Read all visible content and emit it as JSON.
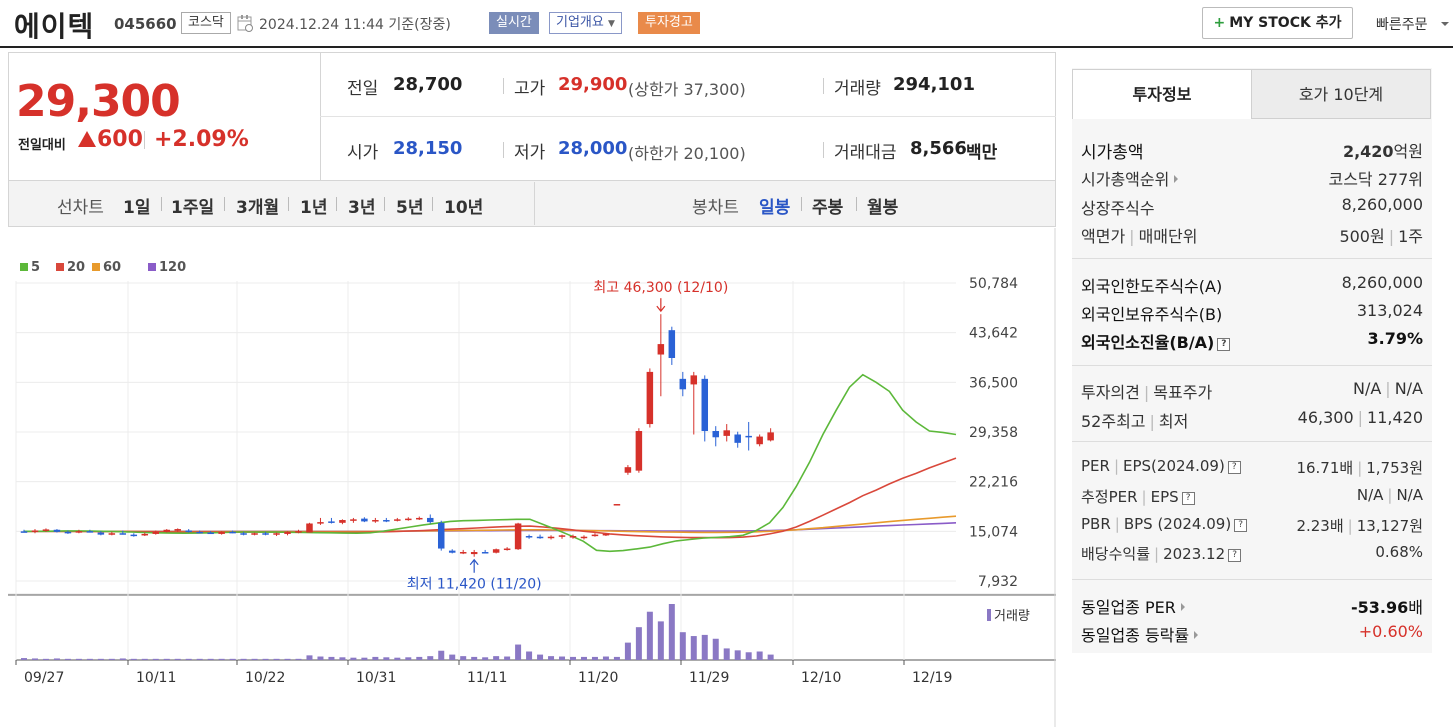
{
  "header": {
    "company_name": "에이텍",
    "code": "045660",
    "market": "코스닥",
    "timestamp": "2024.12.24 11:44  기준(장중)",
    "realtime_label": "실시간",
    "overview_label": "기업개요",
    "warning_label": "투자경고",
    "mystock_label": "MY STOCK 추가",
    "quick_order_label": "빠른주문"
  },
  "price": {
    "current": "29,300",
    "change_label": "전일대비",
    "change_amount": "600",
    "change_pct": "+2.09%",
    "prev_label": "전일",
    "prev": "28,700",
    "high_label": "고가",
    "high": "29,900",
    "upper_limit": "(상한가 37,300)",
    "volume_label": "거래량",
    "volume": "294,101",
    "open_label": "시가",
    "open": "28,150",
    "low_label": "저가",
    "low": "28,000",
    "lower_limit": "(하한가 20,100)",
    "amount_label": "거래대금",
    "amount": "8,566",
    "amount_unit": "백만"
  },
  "period_bar": {
    "line_chart_label": "선차트",
    "line_periods": [
      "1일",
      "1주일",
      "3개월",
      "1년",
      "3년",
      "5년",
      "10년"
    ],
    "candle_label": "봉차트",
    "candle_periods": [
      "일봉",
      "주봉",
      "월봉"
    ],
    "active_candle": "일봉"
  },
  "chart_data": {
    "type": "candlestick",
    "legend": [
      "5",
      "20",
      "60",
      "120"
    ],
    "ma_colors": {
      "5": "#5cb83a",
      "20": "#d9483b",
      "60": "#e89a2c",
      "120": "#8a5cc8"
    },
    "up_color": "#d6312a",
    "down_color": "#2a62d6",
    "volume_color": "#8a78c4",
    "y_ticks": [
      "50,784",
      "43,642",
      "36,500",
      "29,358",
      "22,216",
      "15,074",
      "7,932"
    ],
    "y_tick_values": [
      50784,
      43642,
      36500,
      29358,
      22216,
      15074,
      7932
    ],
    "x_ticks": [
      "09/27",
      "10/11",
      "10/22",
      "10/31",
      "11/11",
      "11/20",
      "11/29",
      "12/10",
      "12/19"
    ],
    "max_annotation": "최고 46,300 (12/10)",
    "min_annotation": "최저 11,420 (11/20)",
    "volume_label": "거래량",
    "candles": [
      {
        "o": 15074,
        "h": 15300,
        "l": 14900,
        "c": 15000
      },
      {
        "o": 15000,
        "h": 15400,
        "l": 14800,
        "c": 15200
      },
      {
        "o": 15200,
        "h": 15500,
        "l": 15000,
        "c": 15350
      },
      {
        "o": 15300,
        "h": 15400,
        "l": 14900,
        "c": 15000
      },
      {
        "o": 15000,
        "h": 15200,
        "l": 14700,
        "c": 14900
      },
      {
        "o": 15000,
        "h": 15300,
        "l": 14800,
        "c": 15100
      },
      {
        "o": 15100,
        "h": 15300,
        "l": 14900,
        "c": 15000
      },
      {
        "o": 14900,
        "h": 15100,
        "l": 14500,
        "c": 14600
      },
      {
        "o": 14700,
        "h": 15000,
        "l": 14500,
        "c": 14800
      },
      {
        "o": 14800,
        "h": 15200,
        "l": 14600,
        "c": 14700
      },
      {
        "o": 14600,
        "h": 14800,
        "l": 14300,
        "c": 14500
      },
      {
        "o": 14600,
        "h": 14900,
        "l": 14400,
        "c": 14700
      },
      {
        "o": 14700,
        "h": 15200,
        "l": 14600,
        "c": 15000
      },
      {
        "o": 15000,
        "h": 15400,
        "l": 14900,
        "c": 15300
      },
      {
        "o": 15300,
        "h": 15500,
        "l": 15000,
        "c": 15400
      },
      {
        "o": 15200,
        "h": 15400,
        "l": 14900,
        "c": 15000
      },
      {
        "o": 15000,
        "h": 15200,
        "l": 14800,
        "c": 14900
      },
      {
        "o": 14900,
        "h": 15100,
        "l": 14700,
        "c": 14800
      },
      {
        "o": 14700,
        "h": 15100,
        "l": 14600,
        "c": 15000
      },
      {
        "o": 15000,
        "h": 15200,
        "l": 14800,
        "c": 14900
      },
      {
        "o": 14800,
        "h": 15000,
        "l": 14500,
        "c": 14700
      },
      {
        "o": 14700,
        "h": 14900,
        "l": 14500,
        "c": 14800
      },
      {
        "o": 14800,
        "h": 15000,
        "l": 14500,
        "c": 14600
      },
      {
        "o": 14600,
        "h": 14900,
        "l": 14400,
        "c": 14800
      },
      {
        "o": 14700,
        "h": 15100,
        "l": 14500,
        "c": 15000
      },
      {
        "o": 15000,
        "h": 15300,
        "l": 14800,
        "c": 15100
      },
      {
        "o": 14900,
        "h": 16300,
        "l": 14900,
        "c": 16200
      },
      {
        "o": 16300,
        "h": 17000,
        "l": 16000,
        "c": 16400
      },
      {
        "o": 16500,
        "h": 17000,
        "l": 16200,
        "c": 16300
      },
      {
        "o": 16300,
        "h": 16800,
        "l": 16100,
        "c": 16700
      },
      {
        "o": 16600,
        "h": 17000,
        "l": 16300,
        "c": 16800
      },
      {
        "o": 16900,
        "h": 17100,
        "l": 16400,
        "c": 16500
      },
      {
        "o": 16500,
        "h": 17000,
        "l": 16300,
        "c": 16700
      },
      {
        "o": 16700,
        "h": 17000,
        "l": 16400,
        "c": 16600
      },
      {
        "o": 16700,
        "h": 17000,
        "l": 16500,
        "c": 16800
      },
      {
        "o": 16800,
        "h": 17100,
        "l": 16600,
        "c": 16900
      },
      {
        "o": 16900,
        "h": 17200,
        "l": 16700,
        "c": 17000
      },
      {
        "o": 17000,
        "h": 17500,
        "l": 16200,
        "c": 16400
      },
      {
        "o": 16300,
        "h": 16600,
        "l": 12300,
        "c": 12600
      },
      {
        "o": 12300,
        "h": 12500,
        "l": 11900,
        "c": 12000
      },
      {
        "o": 12000,
        "h": 12400,
        "l": 11800,
        "c": 12100
      },
      {
        "o": 11800,
        "h": 12400,
        "l": 11420,
        "c": 12100
      },
      {
        "o": 12100,
        "h": 12400,
        "l": 11900,
        "c": 12000
      },
      {
        "o": 12000,
        "h": 12600,
        "l": 11900,
        "c": 12500
      },
      {
        "o": 12500,
        "h": 12800,
        "l": 12300,
        "c": 12600
      },
      {
        "o": 12500,
        "h": 16300,
        "l": 12400,
        "c": 16200
      },
      {
        "o": 14400,
        "h": 14600,
        "l": 14000,
        "c": 14200
      },
      {
        "o": 14300,
        "h": 14600,
        "l": 14000,
        "c": 14100
      },
      {
        "o": 14100,
        "h": 14500,
        "l": 13900,
        "c": 14300
      },
      {
        "o": 14300,
        "h": 14600,
        "l": 14000,
        "c": 14500
      },
      {
        "o": 14200,
        "h": 14600,
        "l": 14000,
        "c": 14400
      },
      {
        "o": 14200,
        "h": 14500,
        "l": 13900,
        "c": 14300
      },
      {
        "o": 14500,
        "h": 14800,
        "l": 14300,
        "c": 14600
      },
      {
        "o": 14600,
        "h": 14800,
        "l": 14400,
        "c": 14700
      },
      {
        "o": 18900,
        "h": 19000,
        "l": 18800,
        "c": 19000
      },
      {
        "o": 23500,
        "h": 24600,
        "l": 23200,
        "c": 24300
      },
      {
        "o": 23800,
        "h": 29900,
        "l": 23500,
        "c": 29500
      },
      {
        "o": 30500,
        "h": 38500,
        "l": 30000,
        "c": 38000
      },
      {
        "o": 40500,
        "h": 46300,
        "l": 34500,
        "c": 42000
      },
      {
        "o": 44000,
        "h": 44500,
        "l": 39000,
        "c": 40000
      },
      {
        "o": 37000,
        "h": 38000,
        "l": 34500,
        "c": 35500
      },
      {
        "o": 36200,
        "h": 38000,
        "l": 29000,
        "c": 37500
      },
      {
        "o": 37000,
        "h": 37500,
        "l": 28000,
        "c": 29500
      },
      {
        "o": 29500,
        "h": 30200,
        "l": 27300,
        "c": 28600
      },
      {
        "o": 28800,
        "h": 30500,
        "l": 28000,
        "c": 29600
      },
      {
        "o": 29000,
        "h": 29400,
        "l": 27100,
        "c": 27800
      },
      {
        "o": 28800,
        "h": 30800,
        "l": 26700,
        "c": 28600
      },
      {
        "o": 27600,
        "h": 29000,
        "l": 27300,
        "c": 28700
      },
      {
        "o": 28150,
        "h": 29900,
        "l": 28000,
        "c": 29300
      }
    ],
    "volumes": [
      5,
      4,
      3,
      4,
      3,
      3,
      3,
      3,
      3,
      4,
      3,
      3,
      3,
      3,
      3,
      3,
      3,
      3,
      3,
      3,
      3,
      3,
      3,
      3,
      3,
      3,
      12,
      9,
      8,
      7,
      6,
      6,
      8,
      7,
      6,
      7,
      8,
      10,
      24,
      14,
      10,
      8,
      7,
      10,
      9,
      40,
      22,
      14,
      10,
      9,
      8,
      8,
      8,
      9,
      8,
      45,
      85,
      125,
      100,
      145,
      72,
      62,
      65,
      55,
      30,
      25,
      20,
      22,
      14
    ],
    "ma5": [
      15074,
      15074,
      15100,
      15140,
      15130,
      15120,
      15080,
      15040,
      14980,
      14900,
      14860,
      14820,
      14800,
      14820,
      14860,
      14900,
      14960,
      14980,
      14960,
      14960,
      14940,
      14920,
      14880,
      14860,
      14820,
      14800,
      14860,
      15100,
      15400,
      15700,
      16000,
      16250,
      16500,
      16600,
      16650,
      16700,
      16750,
      16800,
      16800,
      16050,
      15300,
      14500,
      13650,
      12350,
      12200,
      12300,
      12550,
      12800,
      13300,
      13700,
      13900,
      14100,
      14200,
      14300,
      14500,
      15200,
      16300,
      18500,
      21500,
      25000,
      29000,
      32500,
      35800,
      37600,
      36500,
      35200,
      32500,
      30800,
      29500,
      29300,
      29000
    ],
    "ma20": [
      15074,
      15074,
      15080,
      15080,
      15080,
      15070,
      15060,
      15050,
      15040,
      15020,
      15000,
      14990,
      14980,
      14970,
      14960,
      14960,
      14960,
      14970,
      14970,
      14970,
      14960,
      14950,
      14950,
      14940,
      14940,
      14940,
      14960,
      15000,
      15050,
      15120,
      15200,
      15300,
      15380,
      15450,
      15550,
      15650,
      15740,
      15800,
      15830,
      15700,
      15520,
      15320,
      15100,
      14900,
      14700,
      14560,
      14440,
      14360,
      14280,
      14220,
      14180,
      14170,
      14160,
      14180,
      14240,
      14400,
      14700,
      15100,
      15700,
      16500,
      17400,
      18300,
      19200,
      20200,
      21000,
      21900,
      22700,
      23400,
      24200,
      24900,
      25600
    ],
    "ma60": [
      15074,
      15074,
      15074,
      15070,
      15068,
      15066,
      15064,
      15062,
      15060,
      15058,
      15056,
      15054,
      15052,
      15050,
      15048,
      15046,
      15044,
      15044,
      15044,
      15044,
      15044,
      15044,
      15044,
      15046,
      15048,
      15050,
      15060,
      15080,
      15100,
      15120,
      15140,
      15160,
      15180,
      15200,
      15220,
      15240,
      15260,
      15280,
      15300,
      15290,
      15260,
      15230,
      15200,
      15160,
      15120,
      15080,
      15040,
      15000,
      14980,
      14960,
      14940,
      14920,
      14920,
      14930,
      14950,
      15000,
      15080,
      15180,
      15300,
      15450,
      15600,
      15780,
      15950,
      16120,
      16300,
      16480,
      16650,
      16800,
      16950,
      17100,
      17250
    ],
    "ma120": [
      15074,
      15074,
      15074,
      15074,
      15074,
      15074,
      15074,
      15074,
      15074,
      15074,
      15074,
      15074,
      15074,
      15074,
      15074,
      15074,
      15074,
      15074,
      15074,
      15074,
      15074,
      15074,
      15074,
      15074,
      15074,
      15074,
      15080,
      15090,
      15100,
      15110,
      15120,
      15130,
      15140,
      15150,
      15160,
      15170,
      15180,
      15190,
      15200,
      15200,
      15195,
      15190,
      15180,
      15170,
      15160,
      15150,
      15140,
      15130,
      15125,
      15120,
      15120,
      15120,
      15120,
      15125,
      15130,
      15150,
      15190,
      15240,
      15300,
      15380,
      15460,
      15550,
      15640,
      15730,
      15820,
      15900,
      15980,
      16060,
      16140,
      16220,
      16300
    ]
  },
  "right_panel": {
    "tab_invest": "투자정보",
    "tab_hoga": "호가 10단계",
    "rows1": [
      {
        "k": "시가총액",
        "v": "2,420",
        "v_unit": "억원"
      },
      {
        "k": "시가총액순위",
        "v": "코스닥 277위"
      },
      {
        "k": "상장주식수",
        "v": "8,260,000"
      },
      {
        "k": "액면가",
        "k2": "매매단위",
        "v": "500원",
        "v2": "1주"
      }
    ],
    "rows2": [
      {
        "k": "외국인한도주식수(A)",
        "v": "8,260,000"
      },
      {
        "k": "외국인보유주식수(B)",
        "v": "313,024"
      },
      {
        "k": "외국인소진율(B/A)",
        "v": "3.79%"
      }
    ],
    "rows3": [
      {
        "k": "투자의견",
        "k2": "목표주가",
        "v": "N/A",
        "v2": "N/A"
      },
      {
        "k": "52주최고",
        "k2": "최저",
        "v": "46,300",
        "v2": "11,420"
      }
    ],
    "rows4": [
      {
        "k": "PER",
        "k2": "EPS(2024.09)",
        "v": "16.71배",
        "v2": "1,753원"
      },
      {
        "k": "추정PER",
        "k2": "EPS",
        "v": "N/A",
        "v2": "N/A"
      },
      {
        "k": "PBR",
        "k2": "BPS (2024.09)",
        "v": "2.23배",
        "v2": "13,127원"
      },
      {
        "k": "배당수익률",
        "k2": "2023.12",
        "v": "0.68%"
      }
    ],
    "rows5": [
      {
        "k": "동일업종 PER",
        "v": "-53.96",
        "v_unit": "배"
      },
      {
        "k": "동일업종 등락률",
        "v": "+0.60%"
      }
    ]
  }
}
